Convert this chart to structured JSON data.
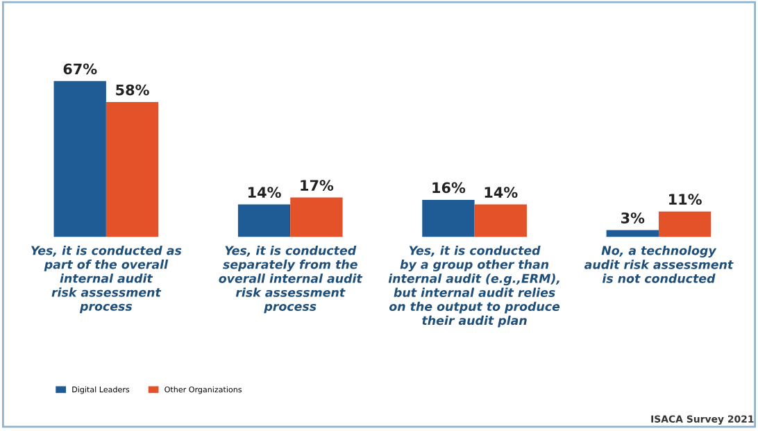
{
  "chart_data": {
    "type": "bar",
    "categories": [
      "Yes, it is conducted as\npart of the overall\ninternal audit\nrisk assessment\nprocess",
      "Yes, it is conducted\nseparately from the\noverall internal audit\nrisk assessment\nprocess",
      "Yes, it is conducted\nby a group other than\ninternal audit (e.g.,ERM),\nbut internal audit relies\non the output to produce\ntheir audit plan",
      "No, a technology\naudit risk assessment\nis not conducted"
    ],
    "series": [
      {
        "name": "Digital Leaders",
        "color": "#1f5c96",
        "values": [
          67,
          14,
          16,
          3
        ],
        "value_labels": [
          "67%",
          "14%",
          "16%",
          "3%"
        ]
      },
      {
        "name": "Other Organizations",
        "color": "#e4522a",
        "values": [
          58,
          17,
          14,
          11
        ],
        "value_labels": [
          "58%",
          "17%",
          "14%",
          "11%"
        ]
      }
    ],
    "legend": "bottom left",
    "annotations": [
      "ISACA Survey 2021"
    ]
  }
}
